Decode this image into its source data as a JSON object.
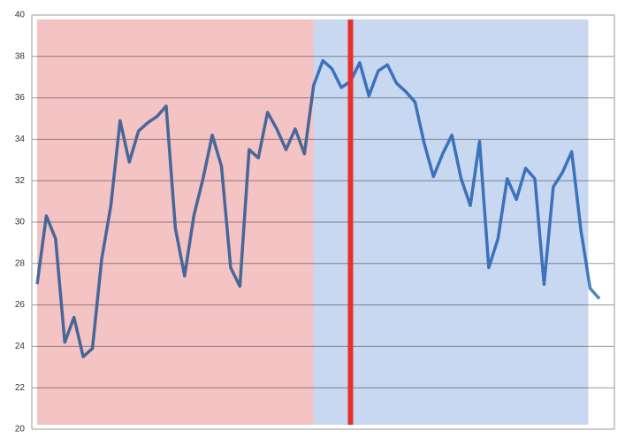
{
  "chart_data": {
    "type": "line",
    "categories": [
      null,
      null,
      null,
      null,
      null,
      null,
      null,
      null,
      null,
      null,
      null,
      null,
      null,
      null,
      null,
      null,
      null,
      null,
      null,
      null,
      null,
      null,
      null,
      null,
      null,
      null,
      null,
      null,
      null,
      null,
      null,
      null,
      null,
      null,
      null,
      null,
      null,
      null,
      null,
      null,
      null,
      null,
      null,
      null,
      null,
      null,
      null,
      null,
      null,
      null,
      null,
      null,
      null,
      null,
      null,
      null,
      null,
      null,
      null,
      null,
      null,
      null
    ],
    "series": [
      {
        "color": "#4a86c8",
        "values": [
          27.0,
          30.3,
          29.2,
          24.2,
          25.4,
          23.5,
          23.9,
          28.2,
          30.8,
          34.9,
          32.9,
          34.4,
          34.8,
          35.1,
          35.6,
          29.7,
          27.4,
          30.3,
          32.1,
          34.2,
          32.7,
          27.8,
          26.9,
          33.5,
          33.1,
          35.3,
          34.5,
          33.5,
          34.5,
          33.3,
          36.6,
          37.8,
          37.4,
          36.5,
          36.8,
          37.7,
          36.1,
          37.3,
          37.6,
          36.7,
          36.3,
          35.8,
          33.8,
          32.2,
          33.3,
          34.2,
          32.1,
          30.8,
          33.9,
          27.8,
          29.2,
          32.1,
          31.1,
          32.6,
          32.1,
          27.0,
          31.7,
          32.4,
          33.4,
          29.6,
          26.8,
          26.3
        ]
      }
    ],
    "ylim": [
      20,
      40
    ],
    "yticks": [
      20,
      22,
      24,
      26,
      28,
      30,
      32,
      34,
      36,
      38,
      40
    ],
    "grid": true,
    "bands": [
      {
        "from": 0,
        "to": 30,
        "color": "#f4c3c3"
      },
      {
        "from": 30,
        "to": 59.8,
        "color": "#c8d8f0"
      }
    ],
    "marker_line": {
      "at": 34,
      "color": "#e8302b"
    }
  }
}
